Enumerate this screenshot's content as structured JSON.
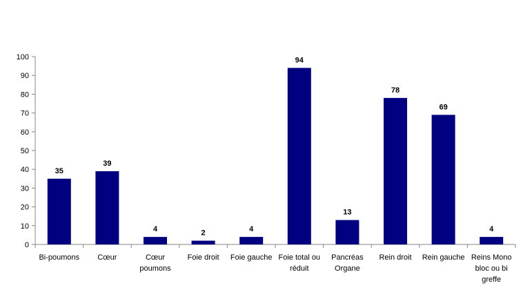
{
  "chart_data": {
    "type": "bar",
    "categories": [
      [
        "Bi-poumons"
      ],
      [
        "Cœur"
      ],
      [
        "Cœur",
        "poumons"
      ],
      [
        "Foie droit"
      ],
      [
        "Foie gauche"
      ],
      [
        "Foie total ou",
        "réduit"
      ],
      [
        "Pancréas",
        "Organe"
      ],
      [
        "Rein droit"
      ],
      [
        "Rein gauche"
      ],
      [
        "Reins Mono",
        "bloc ou bi",
        "greffe"
      ]
    ],
    "values": [
      35,
      39,
      4,
      2,
      4,
      94,
      13,
      78,
      69,
      4
    ],
    "yticks": [
      "0",
      "10",
      "20",
      "30",
      "40",
      "50",
      "60",
      "70",
      "80",
      "90",
      "100"
    ],
    "ylim": [
      0,
      100
    ],
    "title": "",
    "xlabel": "",
    "ylabel": "",
    "grid": false,
    "legend": "none",
    "colors": {
      "bar": "#000080",
      "axis": "#868686"
    }
  }
}
